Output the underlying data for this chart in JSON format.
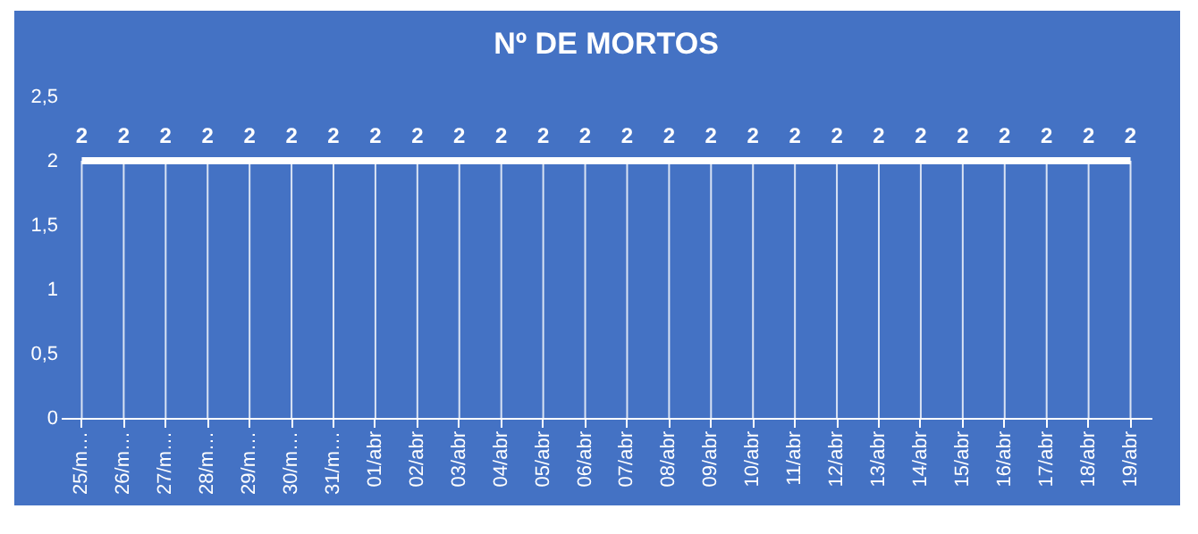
{
  "chart_data": {
    "type": "line",
    "title": "Nº DE MORTOS",
    "categories": [
      "25/m…",
      "26/m…",
      "27/m…",
      "28/m…",
      "29/m…",
      "30/m…",
      "31/m…",
      "01/abr",
      "02/abr",
      "03/abr",
      "04/abr",
      "05/abr",
      "06/abr",
      "07/abr",
      "08/abr",
      "09/abr",
      "10/abr",
      "11/abr",
      "12/abr",
      "13/abr",
      "14/abr",
      "15/abr",
      "16/abr",
      "17/abr",
      "18/abr",
      "19/abr"
    ],
    "values": [
      2,
      2,
      2,
      2,
      2,
      2,
      2,
      2,
      2,
      2,
      2,
      2,
      2,
      2,
      2,
      2,
      2,
      2,
      2,
      2,
      2,
      2,
      2,
      2,
      2,
      2
    ],
    "color": "#ffffff",
    "ylim": [
      0,
      2.5
    ],
    "yticks": [
      0,
      {
        "value": 0.5,
        "label": "0,5"
      },
      1,
      {
        "value": 1.5,
        "label": "1,5"
      },
      2,
      {
        "value": 2.5,
        "label": "2,5"
      }
    ],
    "data_labels": true,
    "grid": false,
    "marker": "none",
    "line_style": "solid"
  }
}
